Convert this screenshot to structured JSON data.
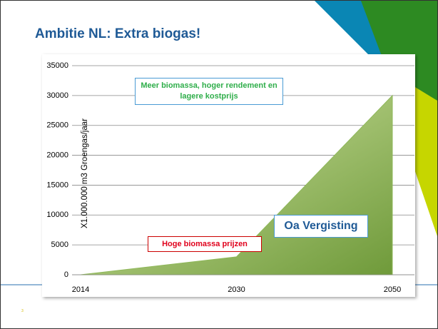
{
  "chart_data": {
    "type": "area",
    "title": "Ambitie NL: Extra biogas!",
    "y_label": "X1.000.000 m3 Groengas/jaar",
    "categories": [
      "2014",
      "2030",
      "2050"
    ],
    "values": [
      0,
      3000,
      30000
    ],
    "color": "#8fb85a",
    "ylim": [
      0,
      35000
    ],
    "yticks": [
      0,
      5000,
      10000,
      15000,
      20000,
      25000,
      30000,
      35000
    ],
    "grid": true,
    "annotations": [
      "Meer biomassa, hoger rendement en lagere kostprijs",
      "Hoge biomassa prijzen",
      "Oa Vergisting"
    ]
  },
  "slide_number": "3"
}
